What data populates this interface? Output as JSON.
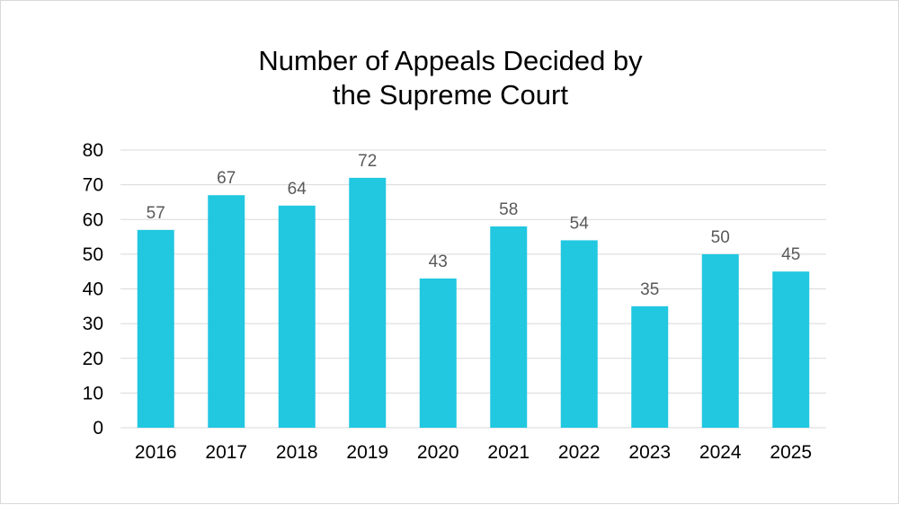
{
  "chart_data": {
    "type": "bar",
    "title_lines": [
      "Number of Appeals Decided by",
      "the Supreme Court"
    ],
    "categories": [
      "2016",
      "2017",
      "2018",
      "2019",
      "2020",
      "2021",
      "2022",
      "2023",
      "2024",
      "2025"
    ],
    "values": [
      57,
      67,
      64,
      72,
      43,
      58,
      54,
      35,
      50,
      45
    ],
    "ylim": [
      0,
      80
    ],
    "yticks": [
      0,
      10,
      20,
      30,
      40,
      50,
      60,
      70,
      80
    ],
    "xlabel": "",
    "ylabel": "",
    "grid": true,
    "legend": "none",
    "bar_color": "#22c7e0",
    "grid_color": "#d9d9d9"
  }
}
